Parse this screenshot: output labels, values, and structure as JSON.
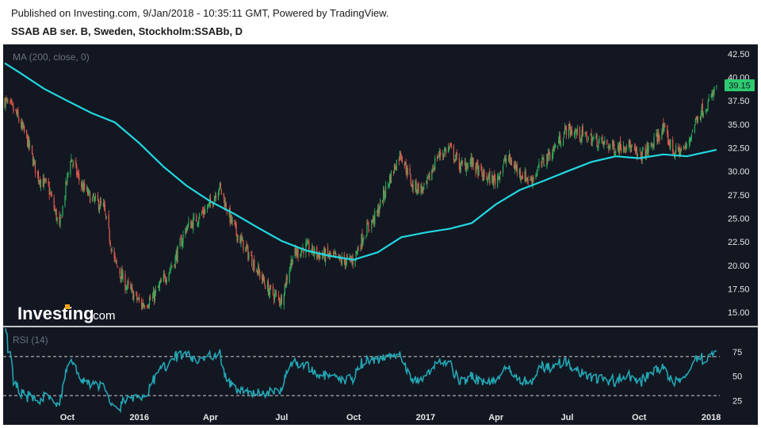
{
  "header": {
    "published": "Published on Investing.com, 9/Jan/2018 - 10:35:11 GMT, Powered by TradingView.",
    "symbol": "SSAB AB ser. B, Sweden, Stockholm:SSABb, D"
  },
  "logo": {
    "main": "Investing",
    "suffix": ".com"
  },
  "colors": {
    "background": "#131722",
    "up": "#2db35c",
    "down": "#e85b4d",
    "ma": "#22d8e0",
    "rsi": "#22a6b3",
    "last_price": "#2ecc71"
  },
  "chart_data": [
    {
      "type": "candlestick",
      "indicator_label": "MA (200, close, 0)",
      "ylim": [
        13.5,
        43.5
      ],
      "y_ticks": [
        "42.50",
        "40.00",
        "37.50",
        "35.00",
        "32.50",
        "30.00",
        "27.50",
        "25.00",
        "22.50",
        "20.00",
        "17.50",
        "15.00"
      ],
      "last_price": "39.15",
      "price_anchors": [
        [
          "2015-07-13",
          37.5
        ],
        [
          "2015-07-27",
          36.2
        ],
        [
          "2015-08-10",
          33.5
        ],
        [
          "2015-08-24",
          29.5
        ],
        [
          "2015-09-07",
          28.2
        ],
        [
          "2015-09-21",
          24.0
        ],
        [
          "2015-10-05",
          31.5
        ],
        [
          "2015-10-19",
          28.5
        ],
        [
          "2015-11-02",
          27.0
        ],
        [
          "2015-11-16",
          26.2
        ],
        [
          "2015-11-30",
          20.5
        ],
        [
          "2015-12-14",
          18.0
        ],
        [
          "2016-01-04",
          15.8
        ],
        [
          "2016-01-18",
          16.5
        ],
        [
          "2016-02-01",
          18.5
        ],
        [
          "2016-02-15",
          20.5
        ],
        [
          "2016-03-01",
          24.0
        ],
        [
          "2016-03-15",
          25.0
        ],
        [
          "2016-04-01",
          26.5
        ],
        [
          "2016-04-12",
          28.5
        ],
        [
          "2016-04-26",
          25.0
        ],
        [
          "2016-05-04",
          23.5
        ],
        [
          "2016-05-31",
          19.5
        ],
        [
          "2016-06-15",
          17.3
        ],
        [
          "2016-06-30",
          16.3
        ],
        [
          "2016-07-15",
          21.0
        ],
        [
          "2016-07-31",
          22.0
        ],
        [
          "2016-08-15",
          21.2
        ],
        [
          "2016-08-31",
          21.0
        ],
        [
          "2016-09-15",
          20.5
        ],
        [
          "2016-09-30",
          20.5
        ],
        [
          "2016-10-15",
          23.5
        ],
        [
          "2016-10-31",
          25.5
        ],
        [
          "2016-11-15",
          29.0
        ],
        [
          "2016-11-30",
          32.0
        ],
        [
          "2016-12-15",
          28.5
        ],
        [
          "2016-12-31",
          28.0
        ],
        [
          "2017-01-15",
          31.5
        ],
        [
          "2017-01-31",
          32.5
        ],
        [
          "2017-02-15",
          30.5
        ],
        [
          "2017-02-28",
          31.0
        ],
        [
          "2017-03-15",
          29.5
        ],
        [
          "2017-03-31",
          29.0
        ],
        [
          "2017-04-15",
          31.5
        ],
        [
          "2017-04-30",
          30.0
        ],
        [
          "2017-05-15",
          29.0
        ],
        [
          "2017-05-31",
          31.0
        ],
        [
          "2017-06-15",
          32.5
        ],
        [
          "2017-06-30",
          34.5
        ],
        [
          "2017-07-15",
          34.0
        ],
        [
          "2017-07-31",
          33.5
        ],
        [
          "2017-08-15",
          33.0
        ],
        [
          "2017-08-31",
          32.5
        ],
        [
          "2017-09-15",
          33.0
        ],
        [
          "2017-09-30",
          31.5
        ],
        [
          "2017-10-15",
          32.5
        ],
        [
          "2017-10-31",
          34.5
        ],
        [
          "2017-11-15",
          32.0
        ],
        [
          "2017-11-30",
          32.5
        ],
        [
          "2017-12-15",
          36.0
        ],
        [
          "2017-12-31",
          37.5
        ],
        [
          "2018-01-08",
          39.15
        ]
      ],
      "ma200": [
        [
          "2015-07-13",
          41.5
        ],
        [
          "2015-08-01",
          40.5
        ],
        [
          "2015-09-01",
          38.8
        ],
        [
          "2015-10-01",
          37.5
        ],
        [
          "2015-11-01",
          36.2
        ],
        [
          "2015-12-01",
          35.2
        ],
        [
          "2016-01-01",
          33.0
        ],
        [
          "2016-02-01",
          30.5
        ],
        [
          "2016-03-01",
          28.5
        ],
        [
          "2016-04-01",
          26.8
        ],
        [
          "2016-05-01",
          25.5
        ],
        [
          "2016-06-01",
          24.0
        ],
        [
          "2016-07-01",
          22.6
        ],
        [
          "2016-08-01",
          21.6
        ],
        [
          "2016-09-01",
          21.0
        ],
        [
          "2016-10-01",
          20.6
        ],
        [
          "2016-11-01",
          21.4
        ],
        [
          "2016-12-01",
          23.0
        ],
        [
          "2017-01-01",
          23.5
        ],
        [
          "2017-02-01",
          23.9
        ],
        [
          "2017-03-01",
          24.5
        ],
        [
          "2017-04-01",
          26.5
        ],
        [
          "2017-05-01",
          28.0
        ],
        [
          "2017-06-01",
          29.0
        ],
        [
          "2017-07-01",
          30.0
        ],
        [
          "2017-08-01",
          31.0
        ],
        [
          "2017-09-01",
          31.6
        ],
        [
          "2017-10-01",
          31.4
        ],
        [
          "2017-11-01",
          31.8
        ],
        [
          "2017-12-01",
          31.6
        ],
        [
          "2018-01-08",
          32.3
        ]
      ]
    },
    {
      "type": "line",
      "indicator_label": "RSI (14)",
      "ylim": [
        0,
        100
      ],
      "y_ticks": [
        "75",
        "50",
        "25"
      ],
      "band_upper": 70,
      "band_lower": 30
    }
  ],
  "x_axis": {
    "tick_labels": [
      "Oct",
      "2016",
      "Apr",
      "Jul",
      "Oct",
      "2017",
      "Apr",
      "Jul",
      "Oct",
      "2018"
    ],
    "tick_dates": [
      "2015-10-01",
      "2016-01-01",
      "2016-04-01",
      "2016-07-01",
      "2016-10-01",
      "2017-01-01",
      "2017-04-01",
      "2017-07-01",
      "2017-10-01",
      "2018-01-01"
    ],
    "date_range": [
      "2015-07-13",
      "2018-01-08"
    ]
  }
}
